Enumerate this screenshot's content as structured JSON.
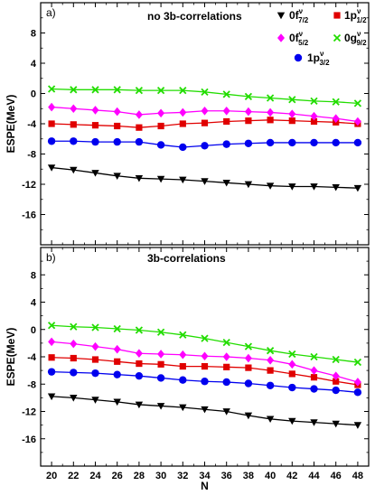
{
  "chart_data": [
    {
      "type": "line",
      "panel_label": "a)",
      "title": "no 3b-correlations",
      "xlabel": "",
      "ylabel": "ESPE(MeV)",
      "x": [
        20,
        22,
        24,
        26,
        28,
        30,
        32,
        34,
        36,
        38,
        40,
        42,
        44,
        46,
        48
      ],
      "ylim": [
        -20,
        12
      ],
      "yticks": [
        8,
        4,
        0,
        -4,
        -8,
        -12,
        -16
      ],
      "series": [
        {
          "name": "0f7/2",
          "color": "#000000",
          "marker": "triangle-down",
          "values": [
            -9.8,
            -10.1,
            -10.5,
            -10.9,
            -11.2,
            -11.3,
            -11.4,
            -11.6,
            -11.8,
            -12.0,
            -12.2,
            -12.3,
            -12.3,
            -12.4,
            -12.5
          ]
        },
        {
          "name": "1p1/2",
          "color": "#e00000",
          "marker": "square",
          "values": [
            -4.0,
            -4.1,
            -4.2,
            -4.3,
            -4.5,
            -4.3,
            -4.0,
            -3.9,
            -3.7,
            -3.6,
            -3.5,
            -3.6,
            -3.7,
            -3.8,
            -4.0
          ]
        },
        {
          "name": "0f5/2",
          "color": "#ff00ff",
          "marker": "diamond",
          "values": [
            -1.8,
            -2.0,
            -2.2,
            -2.4,
            -2.8,
            -2.6,
            -2.5,
            -2.3,
            -2.3,
            -2.4,
            -2.5,
            -2.7,
            -3.0,
            -3.3,
            -3.7
          ]
        },
        {
          "name": "0g9/2",
          "color": "#22dd00",
          "marker": "x",
          "values": [
            0.6,
            0.5,
            0.5,
            0.5,
            0.4,
            0.4,
            0.4,
            0.2,
            -0.1,
            -0.4,
            -0.6,
            -0.8,
            -1.0,
            -1.1,
            -1.3
          ]
        },
        {
          "name": "1p3/2",
          "color": "#0000ee",
          "marker": "circle",
          "values": [
            -6.3,
            -6.3,
            -6.4,
            -6.4,
            -6.4,
            -6.8,
            -7.1,
            -6.9,
            -6.7,
            -6.6,
            -6.5,
            -6.5,
            -6.5,
            -6.5,
            -6.5
          ]
        }
      ]
    },
    {
      "type": "line",
      "panel_label": "b)",
      "title": "3b-correlations",
      "xlabel": "N",
      "ylabel": "ESPE(MeV)",
      "x": [
        20,
        22,
        24,
        26,
        28,
        30,
        32,
        34,
        36,
        38,
        40,
        42,
        44,
        46,
        48
      ],
      "ylim": [
        -20,
        12
      ],
      "yticks": [
        8,
        4,
        0,
        -4,
        -8,
        -12,
        -16
      ],
      "xticks": [
        20,
        22,
        24,
        26,
        28,
        30,
        32,
        34,
        36,
        38,
        40,
        42,
        44,
        46,
        48
      ],
      "series": [
        {
          "name": "0f7/2",
          "color": "#000000",
          "marker": "triangle-down",
          "values": [
            -9.8,
            -10.0,
            -10.3,
            -10.6,
            -11.0,
            -11.2,
            -11.4,
            -11.7,
            -12.0,
            -12.6,
            -13.1,
            -13.4,
            -13.6,
            -13.8,
            -14.0
          ]
        },
        {
          "name": "1p1/2",
          "color": "#e00000",
          "marker": "square",
          "values": [
            -4.1,
            -4.2,
            -4.4,
            -4.7,
            -5.0,
            -5.1,
            -5.4,
            -5.4,
            -5.5,
            -5.6,
            -6.0,
            -6.5,
            -7.0,
            -7.6,
            -8.1
          ]
        },
        {
          "name": "0f5/2",
          "color": "#ff00ff",
          "marker": "diamond",
          "values": [
            -1.8,
            -2.1,
            -2.5,
            -2.9,
            -3.5,
            -3.6,
            -3.7,
            -3.9,
            -4.0,
            -4.2,
            -4.5,
            -5.1,
            -6.0,
            -6.8,
            -7.7
          ]
        },
        {
          "name": "0g9/2",
          "color": "#22dd00",
          "marker": "x",
          "values": [
            0.6,
            0.4,
            0.3,
            0.1,
            -0.1,
            -0.4,
            -0.8,
            -1.3,
            -1.9,
            -2.5,
            -3.1,
            -3.6,
            -4.0,
            -4.4,
            -4.8
          ]
        },
        {
          "name": "1p3/2",
          "color": "#0000ee",
          "marker": "circle",
          "values": [
            -6.2,
            -6.3,
            -6.4,
            -6.6,
            -6.8,
            -7.1,
            -7.4,
            -7.6,
            -7.7,
            -7.9,
            -8.2,
            -8.5,
            -8.7,
            -8.9,
            -9.2
          ]
        }
      ]
    }
  ],
  "legend": {
    "entries": [
      {
        "series": "0f7/2",
        "main": "0f",
        "sup": "ν",
        "sub": "7/2",
        "color": "#000000",
        "marker": "triangle-down"
      },
      {
        "series": "1p1/2",
        "main": "1p",
        "sup": "ν",
        "sub": "1/2",
        "color": "#e00000",
        "marker": "square"
      },
      {
        "series": "0f5/2",
        "main": "0f",
        "sup": "ν",
        "sub": "5/2",
        "color": "#ff00ff",
        "marker": "diamond"
      },
      {
        "series": "0g9/2",
        "main": "0g",
        "sup": "ν",
        "sub": "9/2",
        "color": "#22dd00",
        "marker": "x"
      },
      {
        "series": "1p3/2",
        "main": "1p",
        "sup": "ν",
        "sub": "3/2",
        "color": "#0000ee",
        "marker": "circle"
      }
    ]
  }
}
